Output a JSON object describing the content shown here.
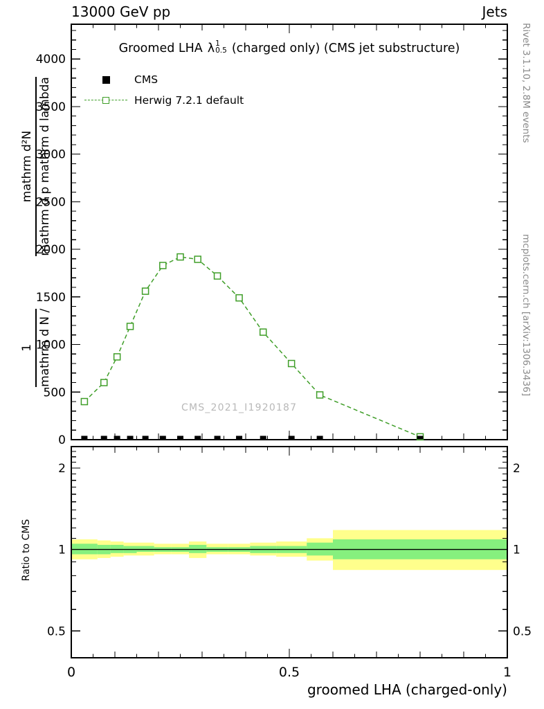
{
  "header": {
    "left": "13000 GeV pp",
    "right": "Jets"
  },
  "title": {
    "prefix": "Groomed LHA",
    "lambda": "λ",
    "sup": "1",
    "sub": "0.5",
    "suffix": "(charged only) (CMS jet substructure)"
  },
  "legend": {
    "cms_label": "CMS",
    "herwig_label": "Herwig 7.2.1 default"
  },
  "watermark": "CMS_2021_I1920187",
  "side_notes": {
    "top_right": "Rivet 3.1.10,  2.8M events",
    "bottom_right": "mcplots.cern.ch [arXiv:1306.3436]"
  },
  "axes": {
    "ylabel_parts": {
      "f1_num": "1",
      "f1_den": "mathrm d N /",
      "f2_num": "mathrm d²N",
      "f2_den": "mathrm d p mathrm d lambda"
    },
    "ratio_ylabel": "Ratio to CMS",
    "xlabel": "groomed LHA (charged-only)"
  },
  "chart_data": {
    "type": "line",
    "title": "Groomed LHA λ^1_0.5 (charged only) (CMS jet substructure)",
    "xlabel": "groomed LHA (charged-only)",
    "ylabel": "1/N d²N / (d p d lambda)",
    "xlim": [
      0,
      1
    ],
    "ylim": [
      0,
      4365
    ],
    "x_ticks": [
      0,
      0.5,
      1
    ],
    "x_tick_labels": [
      "0",
      "0.5",
      "1"
    ],
    "y_ticks": [
      0,
      500,
      1000,
      1500,
      2000,
      2500,
      3000,
      3500,
      4000
    ],
    "x_minor_step": 0.05,
    "y_minor_step": 100,
    "grid": false,
    "legend_position": "top-left",
    "series": [
      {
        "name": "CMS",
        "marker": "filled-square",
        "color": "#000000",
        "x": [
          0.03,
          0.075,
          0.105,
          0.135,
          0.17,
          0.21,
          0.25,
          0.29,
          0.335,
          0.385,
          0.44,
          0.505,
          0.57,
          0.8
        ],
        "y": [
          22,
          22,
          22,
          22,
          22,
          22,
          22,
          22,
          22,
          22,
          22,
          22,
          22,
          22
        ]
      },
      {
        "name": "Herwig 7.2.1 default",
        "marker": "open-square",
        "line_style": "dashed",
        "color": "#3f9e28",
        "x": [
          0.03,
          0.075,
          0.105,
          0.135,
          0.17,
          0.21,
          0.25,
          0.29,
          0.335,
          0.385,
          0.44,
          0.505,
          0.57,
          0.8
        ],
        "y": [
          400,
          600,
          870,
          1190,
          1560,
          1830,
          1920,
          1895,
          1720,
          1490,
          1130,
          800,
          470,
          30
        ]
      }
    ],
    "ratio_panel": {
      "ylabel": "Ratio to CMS",
      "scale": "log",
      "ylim_log10": [
        -0.4,
        0.38
      ],
      "y_ticks": [
        0.5,
        1,
        2
      ],
      "y_tick_labels": [
        "0.5",
        "1",
        "2"
      ],
      "y_minor_ticks": [
        0.6,
        0.7,
        0.8,
        0.9,
        1.1,
        1.2,
        1.3,
        1.4,
        1.5,
        1.6,
        1.7,
        1.8,
        1.9,
        2.1,
        2.2,
        2.3
      ],
      "reference_line": 1,
      "bin_edges": [
        0,
        0.06,
        0.09,
        0.12,
        0.15,
        0.19,
        0.23,
        0.27,
        0.31,
        0.36,
        0.41,
        0.47,
        0.54,
        0.6,
        1.0
      ],
      "yellow_band": [
        [
          0.92,
          1.09
        ],
        [
          0.93,
          1.08
        ],
        [
          0.94,
          1.07
        ],
        [
          0.95,
          1.06
        ],
        [
          0.95,
          1.06
        ],
        [
          0.96,
          1.05
        ],
        [
          0.96,
          1.05
        ],
        [
          0.93,
          1.07
        ],
        [
          0.96,
          1.05
        ],
        [
          0.96,
          1.05
        ],
        [
          0.95,
          1.06
        ],
        [
          0.94,
          1.07
        ],
        [
          0.91,
          1.1
        ],
        [
          0.84,
          1.18
        ]
      ],
      "green_band": [
        [
          0.96,
          1.05
        ],
        [
          0.96,
          1.04
        ],
        [
          0.97,
          1.04
        ],
        [
          0.97,
          1.03
        ],
        [
          0.98,
          1.03
        ],
        [
          0.98,
          1.02
        ],
        [
          0.98,
          1.02
        ],
        [
          0.97,
          1.04
        ],
        [
          0.98,
          1.02
        ],
        [
          0.98,
          1.02
        ],
        [
          0.97,
          1.03
        ],
        [
          0.97,
          1.03
        ],
        [
          0.95,
          1.06
        ],
        [
          0.92,
          1.09
        ]
      ]
    },
    "colors": {
      "herwig": "#3f9e28",
      "cms": "#000000",
      "band_yellow": "#ffff8c",
      "band_green": "#86f07e",
      "frame": "#000000",
      "note_gray": "#8a8a8a",
      "watermark_gray": "#b8b8b8"
    }
  }
}
